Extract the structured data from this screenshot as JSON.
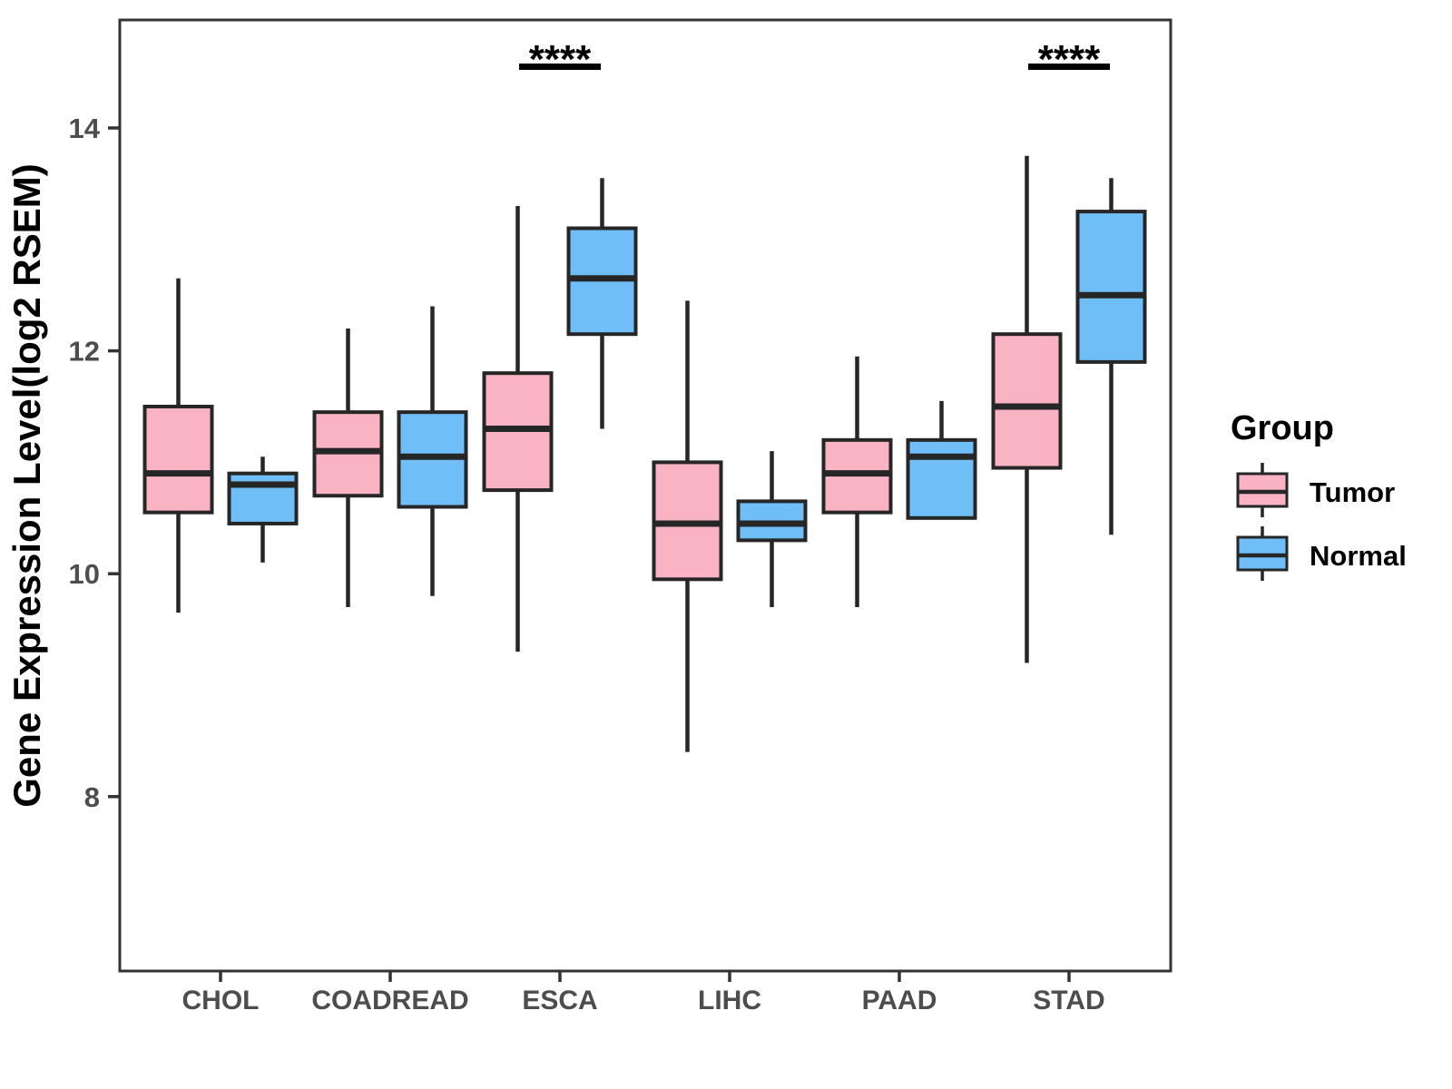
{
  "chart_data": {
    "type": "boxplot",
    "title": "",
    "xlabel": "",
    "y_axis": {
      "label": "Gene Expression Level(log2 RSEM)",
      "tick_labels": [
        "8",
        "10",
        "12",
        "14"
      ],
      "tick_values": [
        8,
        10,
        12,
        14
      ],
      "range": [
        6.4,
        15.0
      ]
    },
    "x_axis": {
      "categories": [
        "CHOL",
        "COADREAD",
        "ESCA",
        "LIHC",
        "PAAD",
        "STAD"
      ]
    },
    "groups": [
      "Tumor",
      "Normal"
    ],
    "legend": {
      "title": "Group",
      "position": "right",
      "items": [
        {
          "label": "Tumor",
          "color": "#F9B3C2"
        },
        {
          "label": "Normal",
          "color": "#6FBEF7"
        }
      ]
    },
    "style_colors": {
      "box_stroke": "#262626",
      "axis_stroke": "#333333",
      "tick_text": "#4D4D4D",
      "panel_background": "#FFFFFF"
    },
    "series": [
      {
        "name": "Tumor",
        "color": "#F9B3C2",
        "boxes": [
          {
            "category": "CHOL",
            "whisker_low": 9.65,
            "q1": 10.55,
            "median": 10.9,
            "q3": 11.5,
            "whisker_high": 12.65
          },
          {
            "category": "COADREAD",
            "whisker_low": 9.7,
            "q1": 10.7,
            "median": 11.1,
            "q3": 11.45,
            "whisker_high": 12.2
          },
          {
            "category": "ESCA",
            "whisker_low": 9.3,
            "q1": 10.75,
            "median": 11.3,
            "q3": 11.8,
            "whisker_high": 13.3
          },
          {
            "category": "LIHC",
            "whisker_low": 8.4,
            "q1": 9.95,
            "median": 10.45,
            "q3": 11.0,
            "whisker_high": 12.45
          },
          {
            "category": "PAAD",
            "whisker_low": 9.7,
            "q1": 10.55,
            "median": 10.9,
            "q3": 11.2,
            "whisker_high": 11.95
          },
          {
            "category": "STAD",
            "whisker_low": 9.2,
            "q1": 10.95,
            "median": 11.5,
            "q3": 12.15,
            "whisker_high": 13.75
          }
        ]
      },
      {
        "name": "Normal",
        "color": "#6FBEF7",
        "boxes": [
          {
            "category": "CHOL",
            "whisker_low": 10.1,
            "q1": 10.45,
            "median": 10.8,
            "q3": 10.9,
            "whisker_high": 11.05
          },
          {
            "category": "COADREAD",
            "whisker_low": 9.8,
            "q1": 10.6,
            "median": 11.05,
            "q3": 11.45,
            "whisker_high": 12.4
          },
          {
            "category": "ESCA",
            "whisker_low": 11.3,
            "q1": 12.15,
            "median": 12.65,
            "q3": 13.1,
            "whisker_high": 13.55
          },
          {
            "category": "LIHC",
            "whisker_low": 9.7,
            "q1": 10.3,
            "median": 10.45,
            "q3": 10.65,
            "whisker_high": 11.1
          },
          {
            "category": "PAAD",
            "whisker_low": 10.5,
            "q1": 10.5,
            "median": 11.05,
            "q3": 11.2,
            "whisker_high": 11.55
          },
          {
            "category": "STAD",
            "whisker_low": 10.35,
            "q1": 11.9,
            "median": 12.5,
            "q3": 13.25,
            "whisker_high": 13.55
          }
        ]
      }
    ],
    "significance": [
      {
        "category": "ESCA",
        "label": "****"
      },
      {
        "category": "STAD",
        "label": "****"
      }
    ]
  }
}
